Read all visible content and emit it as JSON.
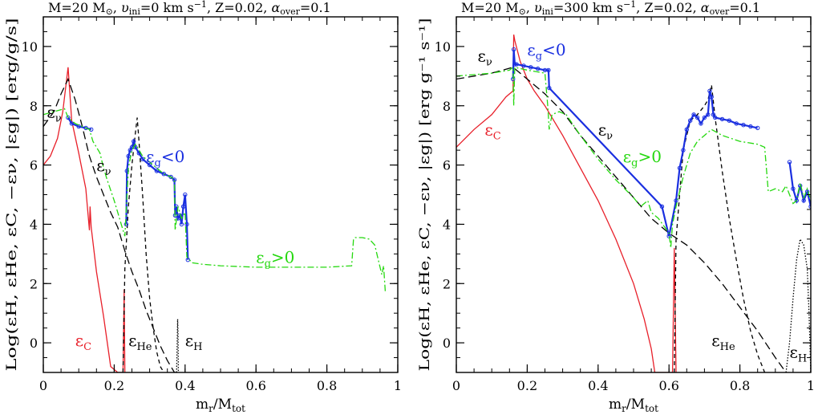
{
  "chart_data": [
    {
      "type": "line",
      "title": "M=20 M⊙, υini=0  km s⁻¹, Z=0.02, αover=0.1",
      "title_parts": {
        "mass": "M=20 M",
        "sun": "⊙",
        "v": "υ",
        "vsub": "ini",
        "veq": "=0  km s",
        "vunit_exp": "−1",
        "z": ", Z=0.02, ",
        "alpha": "α",
        "alphasub": "over",
        "alphaeq": "=0.1"
      },
      "xlabel": "mr/Mtot",
      "xlabel_parts": {
        "m": "m",
        "msub": "r",
        "slash": "/M",
        "mtsub": "tot"
      },
      "ylabel": "Log(εH, εHe, εC, −εν, |εg|) [erg/g/s]",
      "xlim": [
        0,
        1
      ],
      "ylim": [
        -1,
        11
      ],
      "xticks": [
        "0",
        "0.2",
        "0.4",
        "0.6",
        "0.8",
        "1"
      ],
      "yticks": [
        "0",
        "2",
        "4",
        "6",
        "8",
        "10"
      ],
      "series": [
        {
          "name": "eps_C",
          "color": "#e8202a",
          "dash": "solid",
          "x": [
            0,
            0.02,
            0.04,
            0.055,
            0.065,
            0.07,
            0.08,
            0.1,
            0.12,
            0.13,
            0.132,
            0.135,
            0.15,
            0.17,
            0.19,
            0.21,
            0.22,
            0.225,
            0.228,
            0.23
          ],
          "y": [
            6.0,
            6.3,
            6.9,
            7.8,
            8.8,
            9.3,
            7.5,
            6.4,
            5.2,
            3.8,
            4.6,
            3.9,
            2.4,
            0.9,
            -0.8,
            -1.0,
            -1.0,
            -1.0,
            1.8,
            -1.0
          ]
        },
        {
          "name": "eps_nu",
          "color": "#000000",
          "dash": "10,5",
          "x": [
            0.0,
            0.03,
            0.05,
            0.07,
            0.09,
            0.11,
            0.13,
            0.15,
            0.17,
            0.19,
            0.21,
            0.23,
            0.25,
            0.27,
            0.29,
            0.31,
            0.33,
            0.35,
            0.37,
            0.38
          ],
          "y": [
            7.3,
            7.8,
            8.4,
            8.9,
            8.2,
            7.3,
            6.3,
            5.6,
            5.0,
            4.4,
            3.9,
            3.1,
            2.4,
            1.8,
            1.1,
            0.5,
            -0.1,
            -0.6,
            -1.0,
            -1.0
          ]
        },
        {
          "name": "eps_He",
          "color": "#000000",
          "dash": "5,4",
          "x": [
            0.225,
            0.23,
            0.24,
            0.25,
            0.26,
            0.265,
            0.27,
            0.28,
            0.29,
            0.3,
            0.31,
            0.32,
            0.33,
            0.34
          ],
          "y": [
            -1.0,
            2.5,
            4.6,
            6.0,
            7.1,
            7.6,
            6.8,
            5.0,
            3.0,
            1.5,
            0.5,
            -0.3,
            -0.8,
            -1.0
          ]
        },
        {
          "name": "eps_H",
          "color": "#000000",
          "dash": "1.5,2",
          "x": [
            0.376,
            0.378,
            0.379,
            0.38,
            0.381
          ],
          "y": [
            -1.0,
            0.2,
            0.8,
            0.3,
            -1.0
          ]
        },
        {
          "name": "eps_g_neg",
          "color": "#1a2fe0",
          "dash": "solid",
          "marker": true,
          "x": [
            0.0,
            0.06,
            0.07,
            0.08,
            0.1,
            0.12,
            0.135,
            0.14,
            0.15,
            0.155,
            0.16,
            0.165,
            0.17,
            0.175,
            0.18,
            0.19,
            0.2,
            0.21,
            0.22,
            0.23,
            0.234,
            0.236,
            0.24,
            0.245,
            0.25,
            0.255,
            0.26,
            0.27,
            0.28,
            0.3,
            0.32,
            0.34,
            0.36,
            0.37,
            0.372,
            0.375,
            0.38,
            0.385,
            0.39,
            0.395,
            0.4,
            0.405,
            0.408
          ],
          "y": [
            null,
            null,
            7.6,
            7.4,
            7.3,
            7.25,
            7.2,
            null,
            null,
            null,
            null,
            null,
            null,
            null,
            null,
            null,
            null,
            null,
            null,
            null,
            4.0,
            5.8,
            6.3,
            6.5,
            6.6,
            6.8,
            6.6,
            6.4,
            6.2,
            6.0,
            5.8,
            5.7,
            5.6,
            5.5,
            4.3,
            4.6,
            4.2,
            4.3,
            4.0,
            4.6,
            5.0,
            4.0,
            2.8
          ]
        },
        {
          "name": "eps_g_pos",
          "color": "#25d80f",
          "dash": "8,3,2,3",
          "x": [
            0.0,
            0.03,
            0.06,
            0.07,
            0.09,
            0.11,
            0.13,
            0.14,
            0.15,
            0.16,
            0.17,
            0.18,
            0.2,
            0.21,
            0.22,
            0.23,
            0.232,
            0.24,
            0.25,
            0.26,
            0.27,
            0.28,
            0.3,
            0.32,
            0.34,
            0.36,
            0.37,
            0.372,
            0.38,
            0.39,
            0.4,
            0.405,
            0.42,
            0.45,
            0.5,
            0.6,
            0.7,
            0.8,
            0.87,
            0.875,
            0.88,
            0.9,
            0.92,
            0.935,
            0.945,
            0.955,
            0.96,
            0.965
          ],
          "y": [
            7.7,
            7.8,
            7.9,
            7.6,
            7.4,
            7.3,
            7.2,
            6.8,
            6.6,
            6.4,
            5.9,
            5.5,
            4.8,
            4.4,
            4.0,
            3.6,
            4.0,
            5.9,
            6.5,
            6.7,
            6.5,
            6.3,
            6.1,
            5.9,
            5.7,
            5.6,
            5.5,
            3.8,
            4.6,
            4.2,
            4.4,
            2.9,
            2.7,
            2.65,
            2.6,
            2.55,
            2.55,
            2.55,
            2.6,
            3.5,
            3.55,
            3.55,
            3.5,
            3.3,
            2.8,
            2.3,
            2.6,
            1.7
          ]
        }
      ],
      "annotations": [
        {
          "text": "ε",
          "sub": "ν",
          "color": "#000000",
          "x": 0.01,
          "y": 7.6
        },
        {
          "text": "ε",
          "sub": "ν",
          "color": "#000000",
          "x": 0.15,
          "y": 5.8
        },
        {
          "text": "ε",
          "sub": "g",
          "suffix": "<0",
          "color": "#1a2fe0",
          "x": 0.29,
          "y": 6.1
        },
        {
          "text": "ε",
          "sub": "g",
          "suffix": ">0",
          "color": "#25d80f",
          "x": 0.6,
          "y": 2.7
        },
        {
          "text": "ε",
          "sub": "C",
          "color": "#e8202a",
          "x": 0.09,
          "y": -0.1
        },
        {
          "text": "ε",
          "sub": "He",
          "color": "#000000",
          "x": 0.24,
          "y": -0.1
        },
        {
          "text": "ε",
          "sub": "H",
          "color": "#000000",
          "x": 0.4,
          "y": -0.1
        }
      ]
    },
    {
      "type": "line",
      "title": "M=20 M⊙, υini=300  km s⁻¹, Z=0.02, αover=0.1",
      "title_parts": {
        "mass": "M=20 M",
        "sun": "⊙",
        "v": "υ",
        "vsub": "ini",
        "veq": "=300  km s",
        "vunit_exp": "−1",
        "z": ", Z=0.02, ",
        "alpha": "α",
        "alphasub": "over",
        "alphaeq": "=0.1"
      },
      "xlabel": "mr/Mtot",
      "xlabel_parts": {
        "m": "m",
        "msub": "r",
        "slash": "/M",
        "mtsub": "tot"
      },
      "ylabel": "Log(εH, εHe, εC, −εν, |εg|) [erg g⁻¹ s⁻¹]",
      "xlim": [
        0,
        1
      ],
      "ylim": [
        -1,
        11
      ],
      "xticks": [
        "0",
        "0.2",
        "0.4",
        "0.6",
        "0.8",
        "1"
      ],
      "yticks": [
        "0",
        "2",
        "4",
        "6",
        "8",
        "10"
      ],
      "series": [
        {
          "name": "eps_C",
          "color": "#e8202a",
          "dash": "solid",
          "x": [
            0.0,
            0.05,
            0.1,
            0.14,
            0.16,
            0.162,
            0.165,
            0.18,
            0.2,
            0.22,
            0.25,
            0.3,
            0.35,
            0.4,
            0.45,
            0.5,
            0.53,
            0.55,
            0.56,
            0.6,
            0.61,
            0.615,
            0.62
          ],
          "y": [
            6.6,
            7.2,
            7.7,
            8.3,
            8.5,
            10.4,
            10.2,
            9.5,
            8.9,
            8.5,
            8.0,
            7.0,
            5.9,
            4.8,
            3.5,
            2.0,
            0.8,
            -0.2,
            -1.0,
            -1.0,
            -1.0,
            3.2,
            -1.0
          ]
        },
        {
          "name": "eps_nu",
          "color": "#000000",
          "dash": "10,5",
          "x": [
            0.0,
            0.05,
            0.1,
            0.16,
            0.2,
            0.25,
            0.3,
            0.35,
            0.4,
            0.45,
            0.5,
            0.55,
            0.6,
            0.65,
            0.7,
            0.75,
            0.8,
            0.85,
            0.9,
            0.93
          ],
          "y": [
            8.9,
            9.0,
            9.1,
            9.3,
            8.9,
            8.4,
            7.8,
            7.0,
            6.3,
            5.6,
            4.9,
            4.2,
            3.7,
            3.3,
            2.7,
            2.0,
            1.2,
            0.4,
            -0.5,
            -1.0
          ]
        },
        {
          "name": "eps_He",
          "color": "#000000",
          "dash": "5,4",
          "x": [
            0.615,
            0.62,
            0.64,
            0.66,
            0.68,
            0.7,
            0.71,
            0.72,
            0.73,
            0.75,
            0.77,
            0.79,
            0.81,
            0.83,
            0.85,
            0.87
          ],
          "y": [
            -1.0,
            3.5,
            6.5,
            7.5,
            7.7,
            8.0,
            8.2,
            8.7,
            7.6,
            5.8,
            4.2,
            2.8,
            1.5,
            0.4,
            -0.4,
            -1.0
          ]
        },
        {
          "name": "eps_H",
          "color": "#000000",
          "dash": "1.5,2",
          "x": [
            0.93,
            0.94,
            0.95,
            0.96,
            0.97,
            0.98,
            0.99,
            0.995,
            1.0
          ],
          "y": [
            -1.0,
            0.0,
            1.5,
            2.8,
            3.5,
            3.3,
            2.5,
            1.0,
            -1.0
          ]
        },
        {
          "name": "eps_g_neg",
          "color": "#1a2fe0",
          "dash": "solid",
          "marker": true,
          "x": [
            0.16,
            0.162,
            0.165,
            0.17,
            0.19,
            0.21,
            0.23,
            0.25,
            0.26,
            0.262,
            0.58,
            0.6,
            0.62,
            0.63,
            0.64,
            0.65,
            0.66,
            0.67,
            0.68,
            0.69,
            0.7,
            0.71,
            0.715,
            0.72,
            0.725,
            0.73,
            0.75,
            0.77,
            0.79,
            0.81,
            0.83,
            0.85,
            0.86,
            0.87,
            0.88,
            0.9,
            0.92,
            0.94,
            0.95,
            0.96,
            0.97,
            0.98,
            0.99,
            1.0
          ],
          "y": [
            8.9,
            9.9,
            9.4,
            9.4,
            9.35,
            9.3,
            9.25,
            9.2,
            9.2,
            8.6,
            4.6,
            3.6,
            4.8,
            5.9,
            6.5,
            7.2,
            7.5,
            7.7,
            7.6,
            7.4,
            7.6,
            7.7,
            8.5,
            8.3,
            7.7,
            7.6,
            7.55,
            7.5,
            7.4,
            7.35,
            7.3,
            7.25,
            null,
            null,
            null,
            null,
            null,
            6.1,
            5.2,
            4.8,
            5.3,
            4.8,
            5.1,
            4.6
          ]
        },
        {
          "name": "eps_g_pos",
          "color": "#25d80f",
          "dash": "8,3,2,3",
          "x": [
            0.0,
            0.05,
            0.1,
            0.15,
            0.16,
            0.162,
            0.165,
            0.2,
            0.25,
            0.258,
            0.262,
            0.27,
            0.29,
            0.31,
            0.35,
            0.4,
            0.45,
            0.5,
            0.52,
            0.54,
            0.55,
            0.57,
            0.6,
            0.605,
            0.61,
            0.62,
            0.64,
            0.66,
            0.68,
            0.7,
            0.72,
            0.75,
            0.8,
            0.85,
            0.87,
            0.88,
            0.9,
            0.92,
            0.93,
            0.94,
            0.95,
            0.96,
            0.97,
            0.98,
            0.99,
            1.0
          ],
          "y": [
            9.0,
            9.05,
            9.1,
            9.2,
            9.3,
            8.0,
            9.3,
            9.2,
            9.1,
            8.0,
            7.2,
            7.7,
            7.8,
            7.7,
            7.0,
            6.2,
            5.5,
            4.9,
            4.6,
            4.8,
            4.4,
            4.2,
            3.7,
            3.2,
            4.0,
            4.6,
            5.6,
            6.4,
            6.8,
            7.0,
            7.2,
            7.0,
            6.8,
            6.7,
            6.6,
            5.1,
            5.2,
            5.1,
            5.3,
            5.0,
            4.7,
            4.8,
            5.4,
            4.9,
            5.2,
            4.8
          ]
        }
      ],
      "annotations": [
        {
          "text": "ε",
          "sub": "ν",
          "color": "#000000",
          "x": 0.06,
          "y": 9.5
        },
        {
          "text": "ε",
          "sub": "g",
          "suffix": "<0",
          "color": "#1a2fe0",
          "x": 0.2,
          "y": 9.7
        },
        {
          "text": "ε",
          "sub": "C",
          "color": "#e8202a",
          "x": 0.08,
          "y": 7.0
        },
        {
          "text": "ε",
          "sub": "ν",
          "color": "#000000",
          "x": 0.4,
          "y": 7.0
        },
        {
          "text": "ε",
          "sub": "g",
          "suffix": ">0",
          "color": "#25d80f",
          "x": 0.47,
          "y": 6.1
        },
        {
          "text": "ε",
          "sub": "He",
          "color": "#000000",
          "x": 0.72,
          "y": -0.1
        },
        {
          "text": "ε",
          "sub": "H",
          "color": "#000000",
          "x": 0.94,
          "y": -0.5
        }
      ]
    }
  ]
}
